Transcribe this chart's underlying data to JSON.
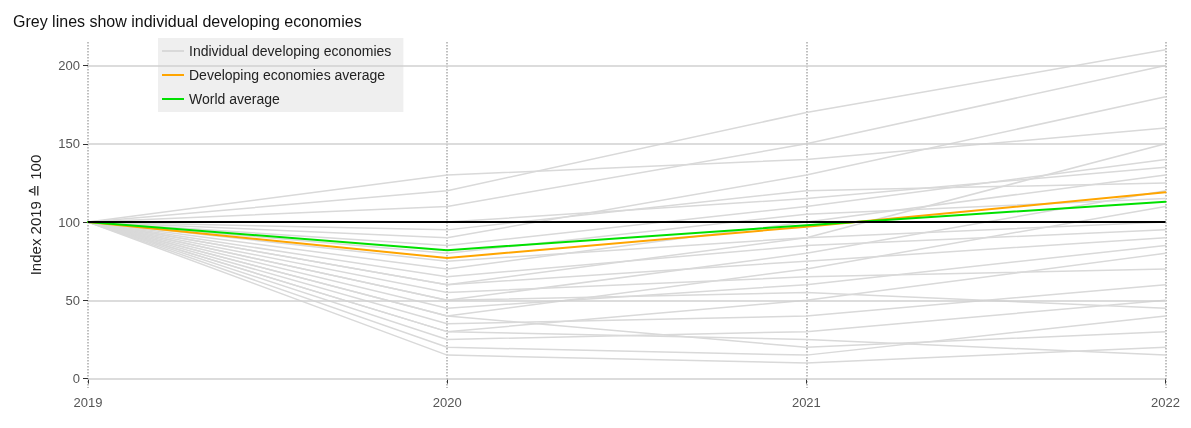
{
  "chart_data": {
    "type": "line",
    "subtitle": "Grey lines show individual developing economies",
    "ylabel": "Index 2019 ≙ 100",
    "categories": [
      "2019",
      "2020",
      "2021",
      "2022"
    ],
    "ylim": [
      -6,
      215
    ],
    "yticks": [
      0,
      50,
      100,
      150,
      200
    ],
    "grid": true,
    "legend": "top left",
    "marker": "none",
    "line_style": "solid",
    "ref_lines": [
      {
        "axis": "y",
        "value": 100,
        "color": "#000000"
      }
    ],
    "series": [
      {
        "name": "Individual developing economies",
        "color": "#d9d9d9",
        "values": [
          100,
          130,
          140,
          160
        ]
      },
      {
        "color": "#d9d9d9",
        "values": [
          100,
          120,
          170,
          210
        ]
      },
      {
        "color": "#d9d9d9",
        "values": [
          100,
          110,
          150,
          200
        ]
      },
      {
        "color": "#d9d9d9",
        "values": [
          100,
          90,
          130,
          180
        ]
      },
      {
        "color": "#d9d9d9",
        "values": [
          100,
          60,
          90,
          150
        ]
      },
      {
        "color": "#d9d9d9",
        "values": [
          100,
          85,
          110,
          140
        ]
      },
      {
        "color": "#d9d9d9",
        "values": [
          100,
          70,
          100,
          130
        ]
      },
      {
        "color": "#d9d9d9",
        "values": [
          100,
          50,
          80,
          120
        ]
      },
      {
        "color": "#d9d9d9",
        "values": [
          100,
          40,
          70,
          110
        ]
      },
      {
        "color": "#d9d9d9",
        "values": [
          100,
          95,
          120,
          125
        ]
      },
      {
        "color": "#d9d9d9",
        "values": [
          100,
          75,
          90,
          100
        ]
      },
      {
        "color": "#d9d9d9",
        "values": [
          100,
          60,
          75,
          90
        ]
      },
      {
        "color": "#d9d9d9",
        "values": [
          100,
          45,
          60,
          85
        ]
      },
      {
        "color": "#d9d9d9",
        "values": [
          100,
          30,
          50,
          80
        ]
      },
      {
        "color": "#d9d9d9",
        "values": [
          100,
          55,
          65,
          70
        ]
      },
      {
        "color": "#d9d9d9",
        "values": [
          100,
          35,
          40,
          60
        ]
      },
      {
        "color": "#d9d9d9",
        "values": [
          100,
          25,
          30,
          50
        ]
      },
      {
        "color": "#d9d9d9",
        "values": [
          100,
          20,
          15,
          40
        ]
      },
      {
        "color": "#d9d9d9",
        "values": [
          100,
          15,
          10,
          20
        ]
      },
      {
        "color": "#d9d9d9",
        "values": [
          100,
          40,
          20,
          30
        ]
      },
      {
        "color": "#d9d9d9",
        "values": [
          100,
          65,
          85,
          95
        ]
      },
      {
        "color": "#d9d9d9",
        "values": [
          100,
          80,
          105,
          115
        ]
      },
      {
        "color": "#d9d9d9",
        "values": [
          100,
          50,
          55,
          45
        ]
      },
      {
        "color": "#d9d9d9",
        "values": [
          100,
          30,
          25,
          15
        ]
      },
      {
        "color": "#d9d9d9",
        "values": [
          100,
          100,
          115,
          135
        ]
      },
      {
        "name": "Developing economies average",
        "color": "#ffa500",
        "values": [
          100,
          77,
          97,
          119
        ]
      },
      {
        "name": "World average",
        "color": "#00e000",
        "values": [
          100,
          82,
          98,
          113
        ]
      }
    ]
  }
}
